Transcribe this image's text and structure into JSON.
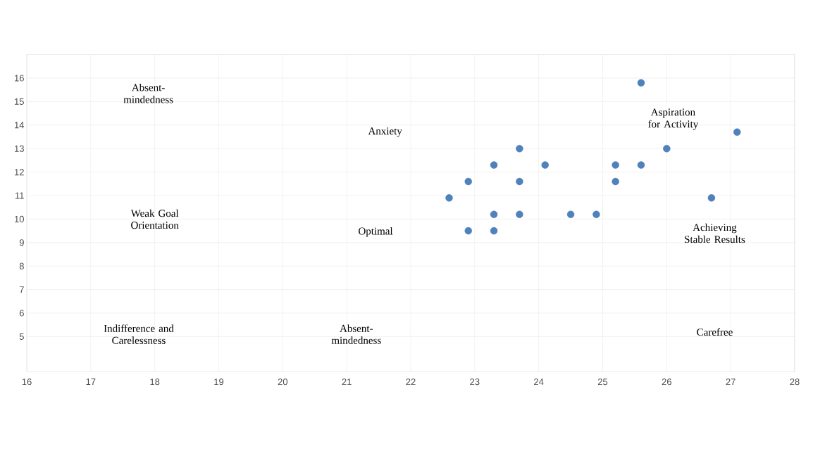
{
  "chart_data": {
    "type": "scatter",
    "x": [
      25.6,
      27.1,
      23.7,
      26.0,
      23.3,
      24.1,
      25.2,
      25.6,
      22.9,
      23.7,
      25.2,
      22.6,
      26.7,
      23.3,
      23.7,
      24.5,
      24.9,
      22.9,
      23.3
    ],
    "values": [
      15.8,
      13.7,
      13.0,
      13.0,
      12.3,
      12.3,
      12.3,
      12.3,
      11.6,
      11.6,
      11.6,
      10.9,
      10.9,
      10.2,
      10.2,
      10.2,
      10.2,
      9.5,
      9.5
    ],
    "color": "#4f81bd",
    "xlim": [
      16,
      28
    ],
    "xticks": [
      16,
      17,
      18,
      19,
      20,
      21,
      22,
      23,
      24,
      25,
      26,
      27,
      28
    ],
    "ylim": [
      3.5,
      17
    ],
    "yticks": [
      5,
      6,
      7,
      8,
      9,
      10,
      11,
      12,
      13,
      14,
      15,
      16
    ],
    "grid": true,
    "annotations": [
      "Absent-mindedness",
      "Anxiety",
      "Aspiration for Activity",
      "Weak Goal Orientation",
      "Optimal",
      "Achieving Stable Results",
      "Indifference and Carelessness",
      "Absent-mindedness",
      "Carefree"
    ]
  }
}
